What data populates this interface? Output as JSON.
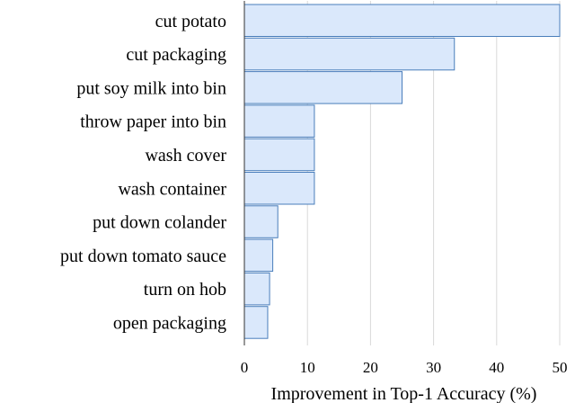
{
  "chart_data": {
    "type": "bar",
    "orientation": "horizontal",
    "categories": [
      "cut potato",
      "cut packaging",
      "put soy milk into bin",
      "throw paper into bin",
      "wash cover",
      "wash container",
      "put down colander",
      "put down tomato sauce",
      "turn on hob",
      "open packaging"
    ],
    "values": [
      50,
      33.3,
      25,
      11.1,
      11.1,
      11.1,
      5.3,
      4.5,
      4.0,
      3.7
    ],
    "title": "",
    "xlabel": "Improvement in Top-1 Accuracy (%)",
    "ylabel": "",
    "xlim": [
      0,
      50
    ],
    "xticks": [
      0,
      10,
      20,
      30,
      40,
      50
    ],
    "grid": "vertical",
    "legend": "none",
    "colors": {
      "bar_fill": "#dae8fb",
      "bar_stroke": "#4a7ebb",
      "grid": "#d9d9d9",
      "axis": "#333333"
    }
  }
}
